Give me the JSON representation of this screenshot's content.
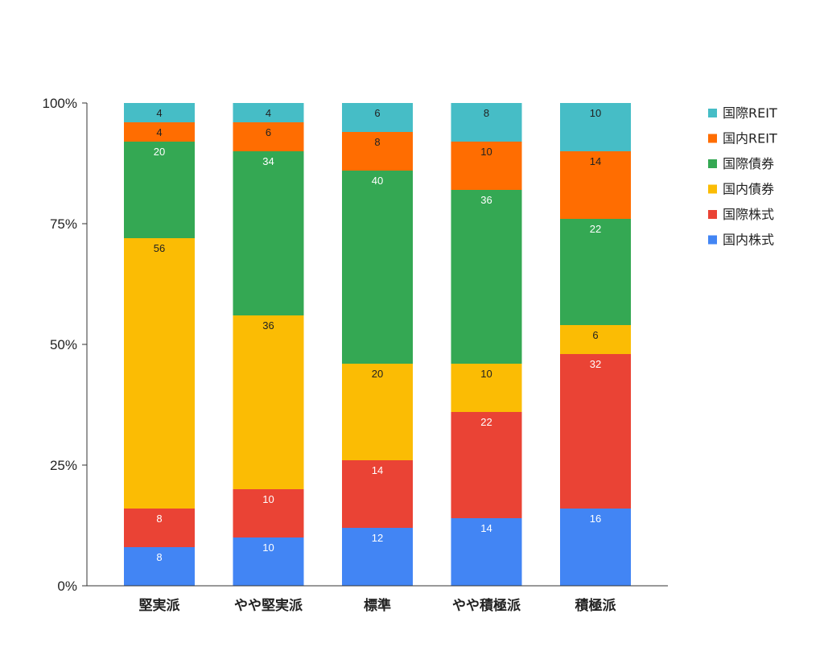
{
  "chart_data": {
    "type": "bar",
    "stacked": true,
    "percent": true,
    "categories": [
      "堅実派",
      "やや堅実派",
      "標準",
      "やや積極派",
      "積極派"
    ],
    "series": [
      {
        "name": "国内株式",
        "color": "#4285F4",
        "label_color": "#ffffff",
        "values": [
          8,
          10,
          12,
          14,
          16
        ]
      },
      {
        "name": "国際株式",
        "color": "#EA4335",
        "label_color": "#ffffff",
        "values": [
          8,
          10,
          14,
          22,
          32
        ]
      },
      {
        "name": "国内債券",
        "color": "#FBBC04",
        "label_color": "#222222",
        "values": [
          56,
          36,
          20,
          10,
          6
        ]
      },
      {
        "name": "国際債券",
        "color": "#34A853",
        "label_color": "#ffffff",
        "values": [
          20,
          34,
          40,
          36,
          22
        ]
      },
      {
        "name": "国内REIT",
        "color": "#FF6D01",
        "label_color": "#222222",
        "values": [
          4,
          6,
          8,
          10,
          14
        ]
      },
      {
        "name": "国際REIT",
        "color": "#46BDC6",
        "label_color": "#222222",
        "values": [
          4,
          4,
          6,
          8,
          10
        ]
      }
    ],
    "y_ticks": [
      "0%",
      "25%",
      "50%",
      "75%",
      "100%"
    ],
    "ylim": [
      0,
      100
    ],
    "grid": false,
    "legend_position": "right"
  }
}
